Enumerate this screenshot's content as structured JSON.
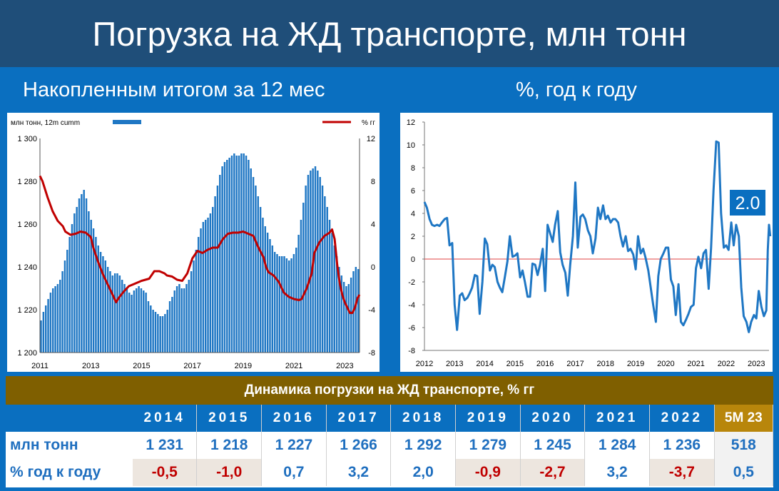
{
  "header": {
    "title": "Погрузка на ЖД транспорте, млн тонн"
  },
  "subtitles": {
    "left": "Накопленным итогом за 12 мес",
    "right": "%, год к году"
  },
  "chart_data": [
    {
      "type": "bar",
      "units_label": "млн тонн, 12m cumm",
      "right_units_label": "% гг",
      "ylim": [
        1200,
        1300
      ],
      "y_ticks": [
        "1 200",
        "1 220",
        "1 240",
        "1 260",
        "1 280",
        "1 300"
      ],
      "y2lim": [
        -8,
        12
      ],
      "y2_ticks": [
        "-8",
        "-4",
        "0",
        "4",
        "8",
        "12"
      ],
      "x_ticks": [
        "2011",
        "2013",
        "2015",
        "2017",
        "2019",
        "2021",
        "2023"
      ],
      "x_range": [
        2011,
        2023.58
      ],
      "bar_color": "#1f77c4",
      "line_color": "#c00000",
      "bars": [
        1215,
        1219,
        1222,
        1225,
        1228,
        1230,
        1231,
        1232,
        1234,
        1238,
        1243,
        1248,
        1254,
        1260,
        1265,
        1268,
        1272,
        1274,
        1276,
        1272,
        1266,
        1262,
        1258,
        1254,
        1250,
        1247,
        1245,
        1243,
        1240,
        1238,
        1236,
        1237,
        1237,
        1236,
        1234,
        1232,
        1230,
        1228,
        1227,
        1229,
        1230,
        1231,
        1230,
        1229,
        1228,
        1224,
        1222,
        1220,
        1219,
        1218,
        1217,
        1217,
        1218,
        1220,
        1224,
        1226,
        1229,
        1231,
        1232,
        1230,
        1230,
        1232,
        1234,
        1238,
        1243,
        1248,
        1254,
        1258,
        1261,
        1262,
        1263,
        1265,
        1268,
        1273,
        1278,
        1283,
        1287,
        1289,
        1290,
        1291,
        1292,
        1293,
        1292,
        1292,
        1293,
        1293,
        1292,
        1290,
        1286,
        1282,
        1278,
        1273,
        1268,
        1263,
        1259,
        1256,
        1253,
        1250,
        1247,
        1246,
        1245,
        1245,
        1245,
        1244,
        1243,
        1244,
        1246,
        1249,
        1255,
        1262,
        1270,
        1278,
        1283,
        1285,
        1286,
        1287,
        1285,
        1282,
        1278,
        1273,
        1268,
        1262,
        1256,
        1250,
        1245,
        1240,
        1236,
        1233,
        1231,
        1232,
        1235,
        1238,
        1240,
        1239
      ],
      "line": [
        [
          2011.0,
          8.5
        ],
        [
          2011.1,
          8.0
        ],
        [
          2011.3,
          6.5
        ],
        [
          2011.5,
          5.2
        ],
        [
          2011.7,
          4.3
        ],
        [
          2011.9,
          3.8
        ],
        [
          2012.0,
          3.3
        ],
        [
          2012.2,
          3.0
        ],
        [
          2012.4,
          3.1
        ],
        [
          2012.6,
          3.3
        ],
        [
          2012.8,
          3.2
        ],
        [
          2013.0,
          2.8
        ],
        [
          2013.1,
          1.8
        ],
        [
          2013.3,
          0.4
        ],
        [
          2013.5,
          -0.8
        ],
        [
          2013.7,
          -1.8
        ],
        [
          2013.9,
          -2.8
        ],
        [
          2014.0,
          -3.3
        ],
        [
          2014.1,
          -2.9
        ],
        [
          2014.3,
          -2.3
        ],
        [
          2014.5,
          -1.8
        ],
        [
          2014.7,
          -1.6
        ],
        [
          2014.9,
          -1.4
        ],
        [
          2015.0,
          -1.3
        ],
        [
          2015.3,
          -1.1
        ],
        [
          2015.5,
          -0.4
        ],
        [
          2015.7,
          -0.4
        ],
        [
          2015.9,
          -0.6
        ],
        [
          2016.0,
          -0.8
        ],
        [
          2016.2,
          -0.9
        ],
        [
          2016.4,
          -1.2
        ],
        [
          2016.6,
          -1.3
        ],
        [
          2016.8,
          -0.6
        ],
        [
          2017.0,
          0.8
        ],
        [
          2017.2,
          1.5
        ],
        [
          2017.4,
          1.3
        ],
        [
          2017.6,
          1.6
        ],
        [
          2017.8,
          1.8
        ],
        [
          2018.0,
          1.8
        ],
        [
          2018.2,
          2.6
        ],
        [
          2018.4,
          3.1
        ],
        [
          2018.6,
          3.2
        ],
        [
          2018.8,
          3.2
        ],
        [
          2019.0,
          3.3
        ],
        [
          2019.2,
          3.1
        ],
        [
          2019.4,
          2.9
        ],
        [
          2019.6,
          1.8
        ],
        [
          2019.8,
          0.9
        ],
        [
          2019.9,
          0.0
        ],
        [
          2020.0,
          -0.5
        ],
        [
          2020.2,
          -0.8
        ],
        [
          2020.4,
          -1.4
        ],
        [
          2020.6,
          -2.4
        ],
        [
          2020.8,
          -2.8
        ],
        [
          2021.0,
          -3.0
        ],
        [
          2021.2,
          -3.1
        ],
        [
          2021.3,
          -3.0
        ],
        [
          2021.5,
          -2.0
        ],
        [
          2021.7,
          -0.6
        ],
        [
          2021.8,
          1.3
        ],
        [
          2022.0,
          2.3
        ],
        [
          2022.2,
          2.9
        ],
        [
          2022.4,
          3.2
        ],
        [
          2022.5,
          3.5
        ],
        [
          2022.6,
          2.6
        ],
        [
          2022.7,
          0.2
        ],
        [
          2022.8,
          -1.5
        ],
        [
          2022.9,
          -2.6
        ],
        [
          2023.0,
          -3.3
        ],
        [
          2023.1,
          -3.8
        ],
        [
          2023.2,
          -4.3
        ],
        [
          2023.3,
          -4.3
        ],
        [
          2023.4,
          -3.8
        ],
        [
          2023.5,
          -2.9
        ],
        [
          2023.58,
          -2.6
        ]
      ]
    },
    {
      "type": "line",
      "ylim": [
        -8,
        12
      ],
      "y_ticks": [
        "12",
        "10",
        "8",
        "6",
        "4",
        "2",
        "0",
        "-2",
        "-4",
        "-6",
        "-8"
      ],
      "x_ticks": [
        "2012",
        "2013",
        "2014",
        "2015",
        "2016",
        "2017",
        "2018",
        "2019",
        "2020",
        "2021",
        "2022",
        "2023"
      ],
      "x_range": [
        2012,
        2023.42
      ],
      "line_color": "#1f77c4",
      "annotation": "2.0",
      "points": [
        [
          2012.0,
          5.0
        ],
        [
          2012.08,
          4.5
        ],
        [
          2012.17,
          3.5
        ],
        [
          2012.25,
          3.0
        ],
        [
          2012.33,
          2.9
        ],
        [
          2012.42,
          3.0
        ],
        [
          2012.5,
          2.9
        ],
        [
          2012.58,
          3.2
        ],
        [
          2012.67,
          3.5
        ],
        [
          2012.75,
          3.6
        ],
        [
          2012.83,
          1.2
        ],
        [
          2012.92,
          1.4
        ],
        [
          2013.0,
          -4.0
        ],
        [
          2013.08,
          -6.2
        ],
        [
          2013.17,
          -3.2
        ],
        [
          2013.25,
          -3.0
        ],
        [
          2013.33,
          -3.6
        ],
        [
          2013.42,
          -3.4
        ],
        [
          2013.5,
          -3.0
        ],
        [
          2013.58,
          -2.5
        ],
        [
          2013.67,
          -1.4
        ],
        [
          2013.75,
          -1.5
        ],
        [
          2013.83,
          -4.8
        ],
        [
          2013.92,
          -2.0
        ],
        [
          2014.0,
          1.8
        ],
        [
          2014.08,
          1.3
        ],
        [
          2014.17,
          -1.0
        ],
        [
          2014.25,
          -0.5
        ],
        [
          2014.33,
          -0.7
        ],
        [
          2014.42,
          -2.0
        ],
        [
          2014.5,
          -2.5
        ],
        [
          2014.58,
          -2.9
        ],
        [
          2014.67,
          -1.5
        ],
        [
          2014.75,
          -0.2
        ],
        [
          2014.83,
          2.0
        ],
        [
          2014.92,
          0.2
        ],
        [
          2015.0,
          0.3
        ],
        [
          2015.08,
          0.5
        ],
        [
          2015.17,
          -1.6
        ],
        [
          2015.25,
          -1.0
        ],
        [
          2015.33,
          -2.0
        ],
        [
          2015.42,
          -3.3
        ],
        [
          2015.5,
          -3.3
        ],
        [
          2015.58,
          -0.4
        ],
        [
          2015.67,
          -0.5
        ],
        [
          2015.75,
          -1.4
        ],
        [
          2015.83,
          -0.5
        ],
        [
          2015.92,
          0.9
        ],
        [
          2016.0,
          -2.8
        ],
        [
          2016.08,
          3.0
        ],
        [
          2016.17,
          2.2
        ],
        [
          2016.25,
          1.5
        ],
        [
          2016.33,
          3.0
        ],
        [
          2016.42,
          4.2
        ],
        [
          2016.5,
          0.6
        ],
        [
          2016.58,
          -0.5
        ],
        [
          2016.67,
          -1.2
        ],
        [
          2016.75,
          -3.2
        ],
        [
          2016.83,
          -0.5
        ],
        [
          2016.92,
          2.0
        ],
        [
          2017.0,
          6.7
        ],
        [
          2017.08,
          1.0
        ],
        [
          2017.17,
          3.7
        ],
        [
          2017.25,
          3.9
        ],
        [
          2017.33,
          3.5
        ],
        [
          2017.42,
          2.5
        ],
        [
          2017.5,
          2.0
        ],
        [
          2017.58,
          0.5
        ],
        [
          2017.67,
          1.8
        ],
        [
          2017.75,
          4.5
        ],
        [
          2017.83,
          3.5
        ],
        [
          2017.92,
          4.7
        ],
        [
          2018.0,
          3.5
        ],
        [
          2018.08,
          3.8
        ],
        [
          2018.17,
          3.2
        ],
        [
          2018.25,
          3.5
        ],
        [
          2018.33,
          3.5
        ],
        [
          2018.42,
          3.2
        ],
        [
          2018.5,
          2.0
        ],
        [
          2018.58,
          1.1
        ],
        [
          2018.67,
          2.0
        ],
        [
          2018.75,
          0.7
        ],
        [
          2018.83,
          0.9
        ],
        [
          2018.92,
          0.4
        ],
        [
          2019.0,
          -0.9
        ],
        [
          2019.08,
          2.0
        ],
        [
          2019.17,
          0.5
        ],
        [
          2019.25,
          0.9
        ],
        [
          2019.33,
          0.1
        ],
        [
          2019.42,
          -1.0
        ],
        [
          2019.5,
          -2.5
        ],
        [
          2019.58,
          -4.0
        ],
        [
          2019.67,
          -5.5
        ],
        [
          2019.75,
          -1.5
        ],
        [
          2019.83,
          0.0
        ],
        [
          2019.92,
          0.5
        ],
        [
          2020.0,
          1.0
        ],
        [
          2020.08,
          1.0
        ],
        [
          2020.17,
          -1.8
        ],
        [
          2020.25,
          -2.4
        ],
        [
          2020.33,
          -4.9
        ],
        [
          2020.42,
          -2.2
        ],
        [
          2020.5,
          -5.5
        ],
        [
          2020.58,
          -5.8
        ],
        [
          2020.67,
          -5.3
        ],
        [
          2020.75,
          -4.8
        ],
        [
          2020.83,
          -4.2
        ],
        [
          2020.92,
          -4.0
        ],
        [
          2021.0,
          -0.8
        ],
        [
          2021.08,
          0.2
        ],
        [
          2021.17,
          -0.8
        ],
        [
          2021.25,
          0.5
        ],
        [
          2021.33,
          0.8
        ],
        [
          2021.42,
          -2.6
        ],
        [
          2021.5,
          1.0
        ],
        [
          2021.58,
          6.0
        ],
        [
          2021.67,
          10.3
        ],
        [
          2021.75,
          10.2
        ],
        [
          2021.83,
          4.0
        ],
        [
          2021.92,
          1.0
        ],
        [
          2022.0,
          1.2
        ],
        [
          2022.08,
          0.8
        ],
        [
          2022.17,
          3.2
        ],
        [
          2022.25,
          1.2
        ],
        [
          2022.33,
          3.0
        ],
        [
          2022.42,
          2.0
        ],
        [
          2022.5,
          -2.5
        ],
        [
          2022.58,
          -5.0
        ],
        [
          2022.67,
          -5.5
        ],
        [
          2022.75,
          -6.4
        ],
        [
          2022.83,
          -5.5
        ],
        [
          2022.92,
          -4.9
        ],
        [
          2023.0,
          -5.2
        ],
        [
          2023.08,
          -2.8
        ],
        [
          2023.17,
          -4.2
        ],
        [
          2023.25,
          -5.0
        ],
        [
          2023.33,
          -4.5
        ],
        [
          2023.38,
          0.8
        ],
        [
          2023.42,
          3.0
        ],
        [
          2023.46,
          2.0
        ]
      ]
    },
    {
      "type": "table",
      "title": "Динамика погрузки на ЖД транспорте, % гг",
      "columns": [
        "2014",
        "2015",
        "2016",
        "2017",
        "2018",
        "2019",
        "2020",
        "2021",
        "2022",
        "5M 23"
      ],
      "rows": [
        {
          "label": "млн тонн",
          "values": [
            "1 231",
            "1 218",
            "1 227",
            "1 266",
            "1 292",
            "1 279",
            "1 245",
            "1 284",
            "1 236",
            "518"
          ]
        },
        {
          "label": "% год к году",
          "values": [
            "-0,5",
            "-1,0",
            "0,7",
            "3,2",
            "2,0",
            "-0,9",
            "-2,7",
            "3,2",
            "-3,7",
            "0,5"
          ]
        }
      ]
    }
  ]
}
